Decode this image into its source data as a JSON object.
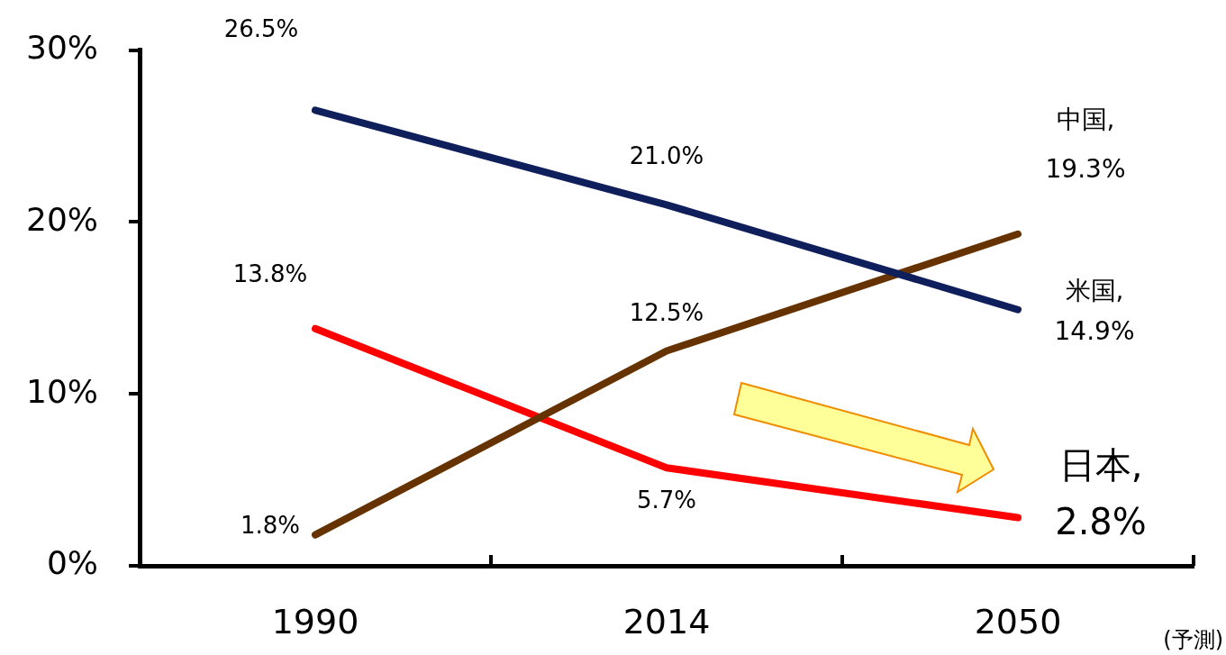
{
  "chart_data": {
    "type": "line",
    "categories": [
      "1990",
      "2014",
      "2050"
    ],
    "series": [
      {
        "name": "米国,",
        "color": "#0e1f5b",
        "values": [
          26.5,
          21.0,
          14.9
        ],
        "value_labels": [
          "26.5%",
          "21.0%",
          "14.9%"
        ]
      },
      {
        "name": "中国,",
        "color": "#663300",
        "values": [
          1.8,
          12.5,
          19.3
        ],
        "value_labels": [
          "1.8%",
          "12.5%",
          "19.3%"
        ]
      },
      {
        "name": "日本,",
        "color": "#ff0000",
        "values": [
          13.8,
          5.7,
          2.8
        ],
        "value_labels": [
          "13.8%",
          "5.7%",
          "2.8%"
        ]
      }
    ],
    "ylim": [
      0,
      30
    ],
    "yticks": [
      {
        "value": 0,
        "label": "0%"
      },
      {
        "value": 10,
        "label": "10%"
      },
      {
        "value": 20,
        "label": "20%"
      },
      {
        "value": 30,
        "label": "30%"
      }
    ],
    "grid": false,
    "legend": false,
    "marker": "none",
    "line_style": "solid",
    "annotations": [
      "(予測)"
    ]
  }
}
